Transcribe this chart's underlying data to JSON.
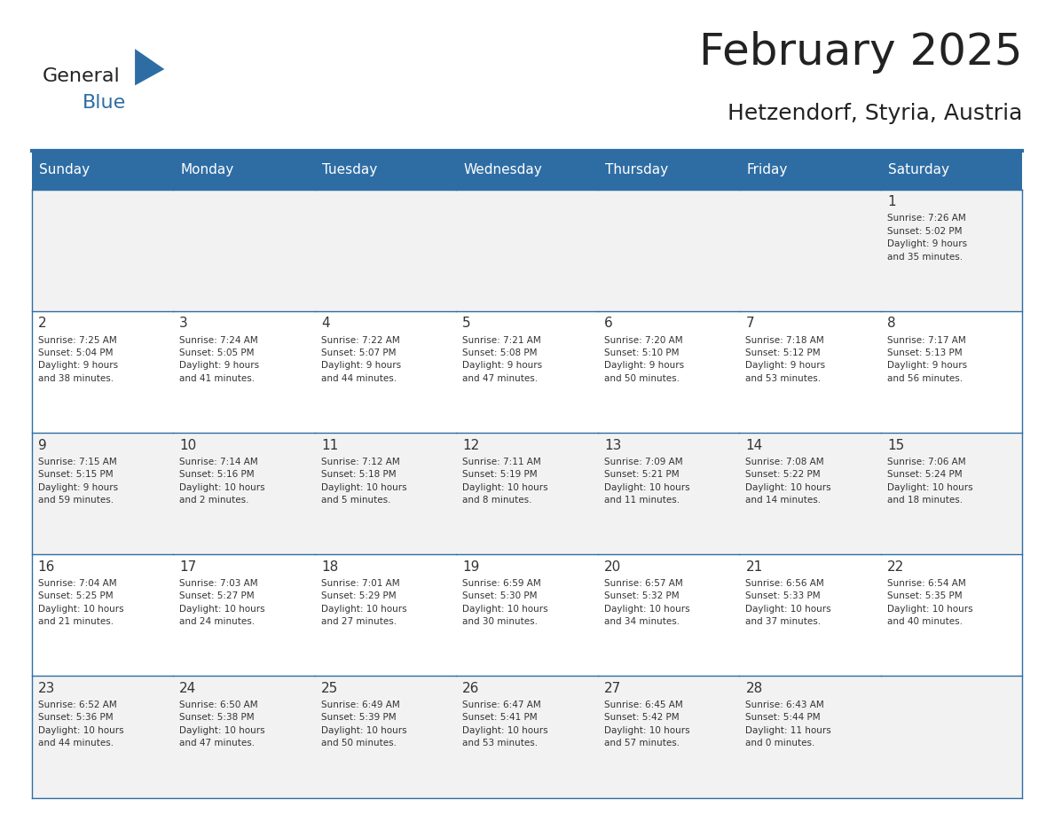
{
  "title": "February 2025",
  "subtitle": "Hetzendorf, Styria, Austria",
  "days_of_week": [
    "Sunday",
    "Monday",
    "Tuesday",
    "Wednesday",
    "Thursday",
    "Friday",
    "Saturday"
  ],
  "header_bg": "#2E6DA4",
  "header_text": "#FFFFFF",
  "cell_bg_light": "#F2F2F2",
  "cell_bg_white": "#FFFFFF",
  "border_color": "#2E6DA4",
  "text_color": "#333333",
  "title_color": "#222222",
  "logo_general_color": "#222222",
  "logo_blue_color": "#2E6DA4",
  "calendar_data": [
    [
      {
        "day": null,
        "info": null
      },
      {
        "day": null,
        "info": null
      },
      {
        "day": null,
        "info": null
      },
      {
        "day": null,
        "info": null
      },
      {
        "day": null,
        "info": null
      },
      {
        "day": null,
        "info": null
      },
      {
        "day": 1,
        "info": "Sunrise: 7:26 AM\nSunset: 5:02 PM\nDaylight: 9 hours\nand 35 minutes."
      }
    ],
    [
      {
        "day": 2,
        "info": "Sunrise: 7:25 AM\nSunset: 5:04 PM\nDaylight: 9 hours\nand 38 minutes."
      },
      {
        "day": 3,
        "info": "Sunrise: 7:24 AM\nSunset: 5:05 PM\nDaylight: 9 hours\nand 41 minutes."
      },
      {
        "day": 4,
        "info": "Sunrise: 7:22 AM\nSunset: 5:07 PM\nDaylight: 9 hours\nand 44 minutes."
      },
      {
        "day": 5,
        "info": "Sunrise: 7:21 AM\nSunset: 5:08 PM\nDaylight: 9 hours\nand 47 minutes."
      },
      {
        "day": 6,
        "info": "Sunrise: 7:20 AM\nSunset: 5:10 PM\nDaylight: 9 hours\nand 50 minutes."
      },
      {
        "day": 7,
        "info": "Sunrise: 7:18 AM\nSunset: 5:12 PM\nDaylight: 9 hours\nand 53 minutes."
      },
      {
        "day": 8,
        "info": "Sunrise: 7:17 AM\nSunset: 5:13 PM\nDaylight: 9 hours\nand 56 minutes."
      }
    ],
    [
      {
        "day": 9,
        "info": "Sunrise: 7:15 AM\nSunset: 5:15 PM\nDaylight: 9 hours\nand 59 minutes."
      },
      {
        "day": 10,
        "info": "Sunrise: 7:14 AM\nSunset: 5:16 PM\nDaylight: 10 hours\nand 2 minutes."
      },
      {
        "day": 11,
        "info": "Sunrise: 7:12 AM\nSunset: 5:18 PM\nDaylight: 10 hours\nand 5 minutes."
      },
      {
        "day": 12,
        "info": "Sunrise: 7:11 AM\nSunset: 5:19 PM\nDaylight: 10 hours\nand 8 minutes."
      },
      {
        "day": 13,
        "info": "Sunrise: 7:09 AM\nSunset: 5:21 PM\nDaylight: 10 hours\nand 11 minutes."
      },
      {
        "day": 14,
        "info": "Sunrise: 7:08 AM\nSunset: 5:22 PM\nDaylight: 10 hours\nand 14 minutes."
      },
      {
        "day": 15,
        "info": "Sunrise: 7:06 AM\nSunset: 5:24 PM\nDaylight: 10 hours\nand 18 minutes."
      }
    ],
    [
      {
        "day": 16,
        "info": "Sunrise: 7:04 AM\nSunset: 5:25 PM\nDaylight: 10 hours\nand 21 minutes."
      },
      {
        "day": 17,
        "info": "Sunrise: 7:03 AM\nSunset: 5:27 PM\nDaylight: 10 hours\nand 24 minutes."
      },
      {
        "day": 18,
        "info": "Sunrise: 7:01 AM\nSunset: 5:29 PM\nDaylight: 10 hours\nand 27 minutes."
      },
      {
        "day": 19,
        "info": "Sunrise: 6:59 AM\nSunset: 5:30 PM\nDaylight: 10 hours\nand 30 minutes."
      },
      {
        "day": 20,
        "info": "Sunrise: 6:57 AM\nSunset: 5:32 PM\nDaylight: 10 hours\nand 34 minutes."
      },
      {
        "day": 21,
        "info": "Sunrise: 6:56 AM\nSunset: 5:33 PM\nDaylight: 10 hours\nand 37 minutes."
      },
      {
        "day": 22,
        "info": "Sunrise: 6:54 AM\nSunset: 5:35 PM\nDaylight: 10 hours\nand 40 minutes."
      }
    ],
    [
      {
        "day": 23,
        "info": "Sunrise: 6:52 AM\nSunset: 5:36 PM\nDaylight: 10 hours\nand 44 minutes."
      },
      {
        "day": 24,
        "info": "Sunrise: 6:50 AM\nSunset: 5:38 PM\nDaylight: 10 hours\nand 47 minutes."
      },
      {
        "day": 25,
        "info": "Sunrise: 6:49 AM\nSunset: 5:39 PM\nDaylight: 10 hours\nand 50 minutes."
      },
      {
        "day": 26,
        "info": "Sunrise: 6:47 AM\nSunset: 5:41 PM\nDaylight: 10 hours\nand 53 minutes."
      },
      {
        "day": 27,
        "info": "Sunrise: 6:45 AM\nSunset: 5:42 PM\nDaylight: 10 hours\nand 57 minutes."
      },
      {
        "day": 28,
        "info": "Sunrise: 6:43 AM\nSunset: 5:44 PM\nDaylight: 11 hours\nand 0 minutes."
      },
      {
        "day": null,
        "info": null
      }
    ]
  ]
}
